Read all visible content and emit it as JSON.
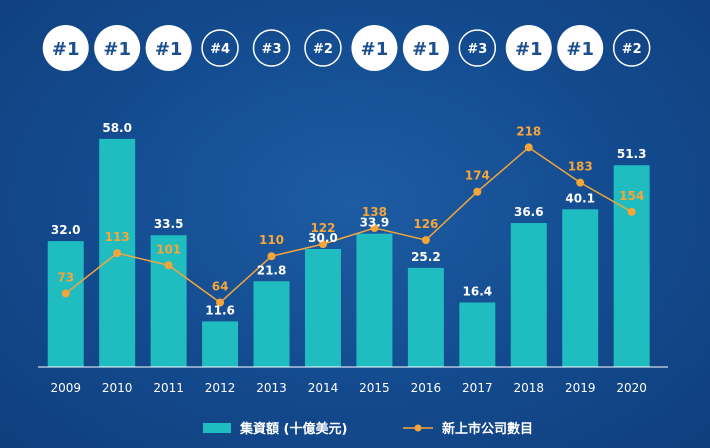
{
  "chart_data": {
    "type": "bar",
    "categories": [
      "2009",
      "2010",
      "2011",
      "2012",
      "2013",
      "2014",
      "2015",
      "2016",
      "2017",
      "2018",
      "2019",
      "2020"
    ],
    "ylim": [
      0,
      60
    ],
    "series": [
      {
        "name": "集資額 (十億美元)",
        "kind": "bar",
        "color": "#1fbcc0",
        "values": [
          32.0,
          58.0,
          33.5,
          11.6,
          21.8,
          30.0,
          33.9,
          25.2,
          16.4,
          36.6,
          40.1,
          51.3
        ],
        "labels": [
          "32.0",
          "58.0",
          "33.5",
          "11.6",
          "21.8",
          "30.0",
          "33.9",
          "25.2",
          "16.4",
          "36.6",
          "40.1",
          "51.3"
        ]
      },
      {
        "name": "新上市公司數目",
        "kind": "line",
        "color": "#f5a53a",
        "values": [
          73,
          113,
          101,
          64,
          110,
          122,
          138,
          126,
          174,
          218,
          183,
          154
        ],
        "labels": [
          "73",
          "113",
          "101",
          "64",
          "110",
          "122",
          "138",
          "126",
          "174",
          "218",
          "183",
          "154"
        ]
      }
    ],
    "line_ylim": [
      0,
      275
    ],
    "rank_badges": [
      "#1",
      "#1",
      "#1",
      "#4",
      "#3",
      "#2",
      "#1",
      "#1",
      "#3",
      "#1",
      "#1",
      "#2"
    ]
  }
}
